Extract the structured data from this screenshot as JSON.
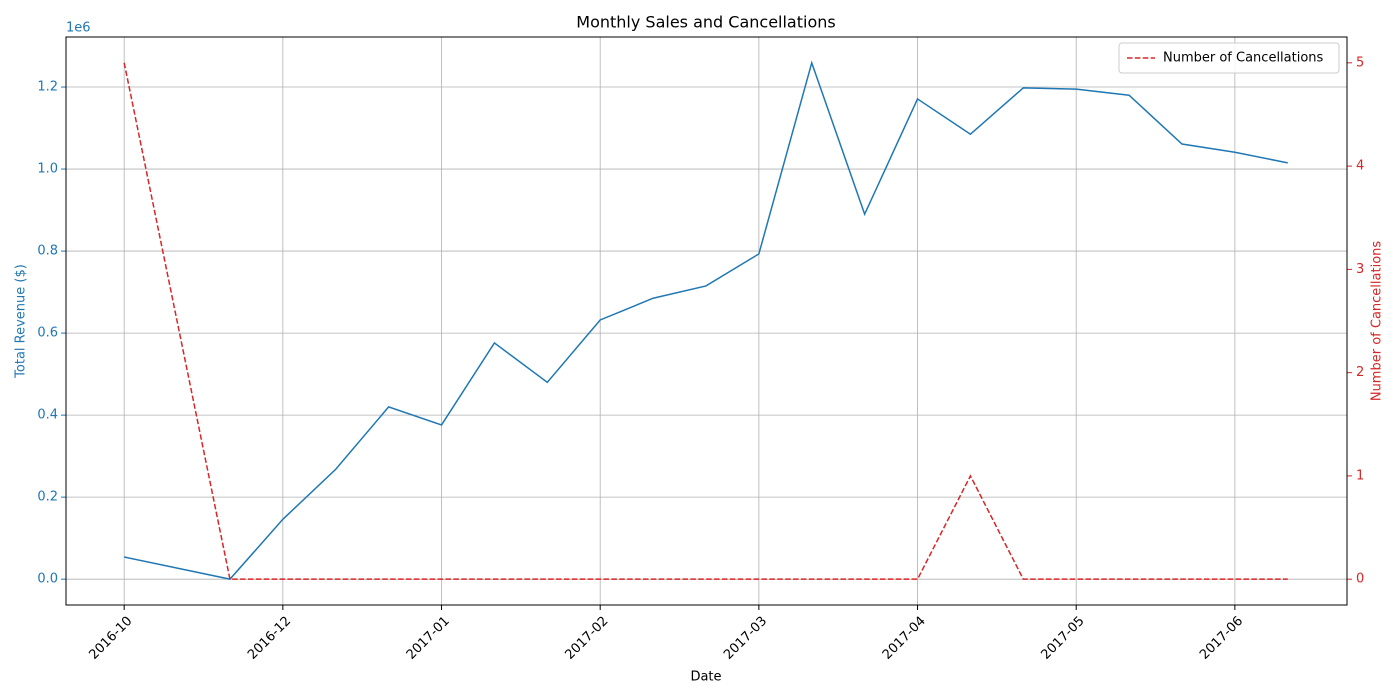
{
  "chart_data": {
    "type": "line",
    "title": "Monthly Sales and Cancellations",
    "xlabel": "Date",
    "ylabel": "Total Revenue ($)",
    "y2label": "Number of Cancellations",
    "y_offset_label": "1e6",
    "x": [
      0,
      2,
      3,
      4,
      5,
      6,
      7,
      8,
      9,
      10,
      11,
      12,
      13,
      14,
      15,
      16,
      17,
      18,
      19,
      20,
      21,
      22
    ],
    "xlim": [
      -1.1,
      23.12
    ],
    "xticks": [
      {
        "value": 0,
        "label": "2016-10"
      },
      {
        "value": 3,
        "label": "2016-12"
      },
      {
        "value": 6,
        "label": "2017-01"
      },
      {
        "value": 9,
        "label": "2017-02"
      },
      {
        "value": 12,
        "label": "2017-03"
      },
      {
        "value": 15,
        "label": "2017-04"
      },
      {
        "value": 18,
        "label": "2017-05"
      },
      {
        "value": 21,
        "label": "2017-06"
      }
    ],
    "ylim": [
      -63000,
      1322000
    ],
    "yticks": [
      {
        "value": 0,
        "label": "0.0"
      },
      {
        "value": 200000,
        "label": "0.2"
      },
      {
        "value": 400000,
        "label": "0.4"
      },
      {
        "value": 600000,
        "label": "0.6"
      },
      {
        "value": 800000,
        "label": "0.8"
      },
      {
        "value": 1000000,
        "label": "1.0"
      },
      {
        "value": 1200000,
        "label": "1.2"
      }
    ],
    "y2lim": [
      -0.25,
      5.25
    ],
    "y2ticks": [
      0,
      1,
      2,
      3,
      4,
      5
    ],
    "grid": true,
    "legend": "upper right",
    "series": [
      {
        "color": "#1f77b4",
        "style": "solid",
        "values": [
          54000,
          0,
          146000,
          268000,
          420000,
          376000,
          576000,
          480000,
          632000,
          685000,
          715000,
          793000,
          1259000,
          890000,
          1171000,
          1085000,
          1198000,
          1195000,
          1180000,
          1061000,
          1041000,
          1015000
        ]
      },
      {
        "name": "Number of Cancellations",
        "color": "#d62728",
        "style": "dashed",
        "axis": "y2",
        "values": [
          5,
          0,
          0,
          0,
          0,
          0,
          0,
          0,
          0,
          0,
          0,
          0,
          0,
          0,
          0,
          1,
          0,
          0,
          0,
          0,
          0,
          0
        ]
      }
    ]
  }
}
